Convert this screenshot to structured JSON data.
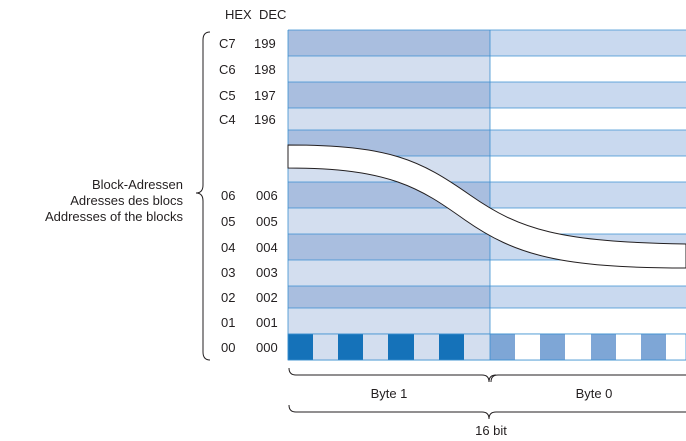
{
  "headers": {
    "hex": "HEX",
    "dec": "DEC"
  },
  "block_label": {
    "line1": "Block-Adressen",
    "line2": "Adresses des blocs",
    "line3": "Addresses of the blocks"
  },
  "rows_top": [
    {
      "hex": "C7",
      "dec": "199"
    },
    {
      "hex": "C6",
      "dec": "198"
    },
    {
      "hex": "C5",
      "dec": "197"
    },
    {
      "hex": "C4",
      "dec": "196"
    }
  ],
  "rows_bottom": [
    {
      "hex": "06",
      "dec": "006"
    },
    {
      "hex": "05",
      "dec": "005"
    },
    {
      "hex": "04",
      "dec": "004"
    },
    {
      "hex": "03",
      "dec": "003"
    },
    {
      "hex": "02",
      "dec": "002"
    },
    {
      "hex": "01",
      "dec": "001"
    },
    {
      "hex": "00",
      "dec": "000"
    }
  ],
  "bytes": {
    "byte1": "Byte 1",
    "byte0": "Byte 0"
  },
  "width_label": "16 bit",
  "colors": {
    "dark_blue": "#a9bedf",
    "light_blue": "#d3deef",
    "pale_blue": "#c9d9ef",
    "bit_dark": "#1572b9",
    "bit_mid": "#7ea6d6",
    "line": "#3a8fd0"
  }
}
